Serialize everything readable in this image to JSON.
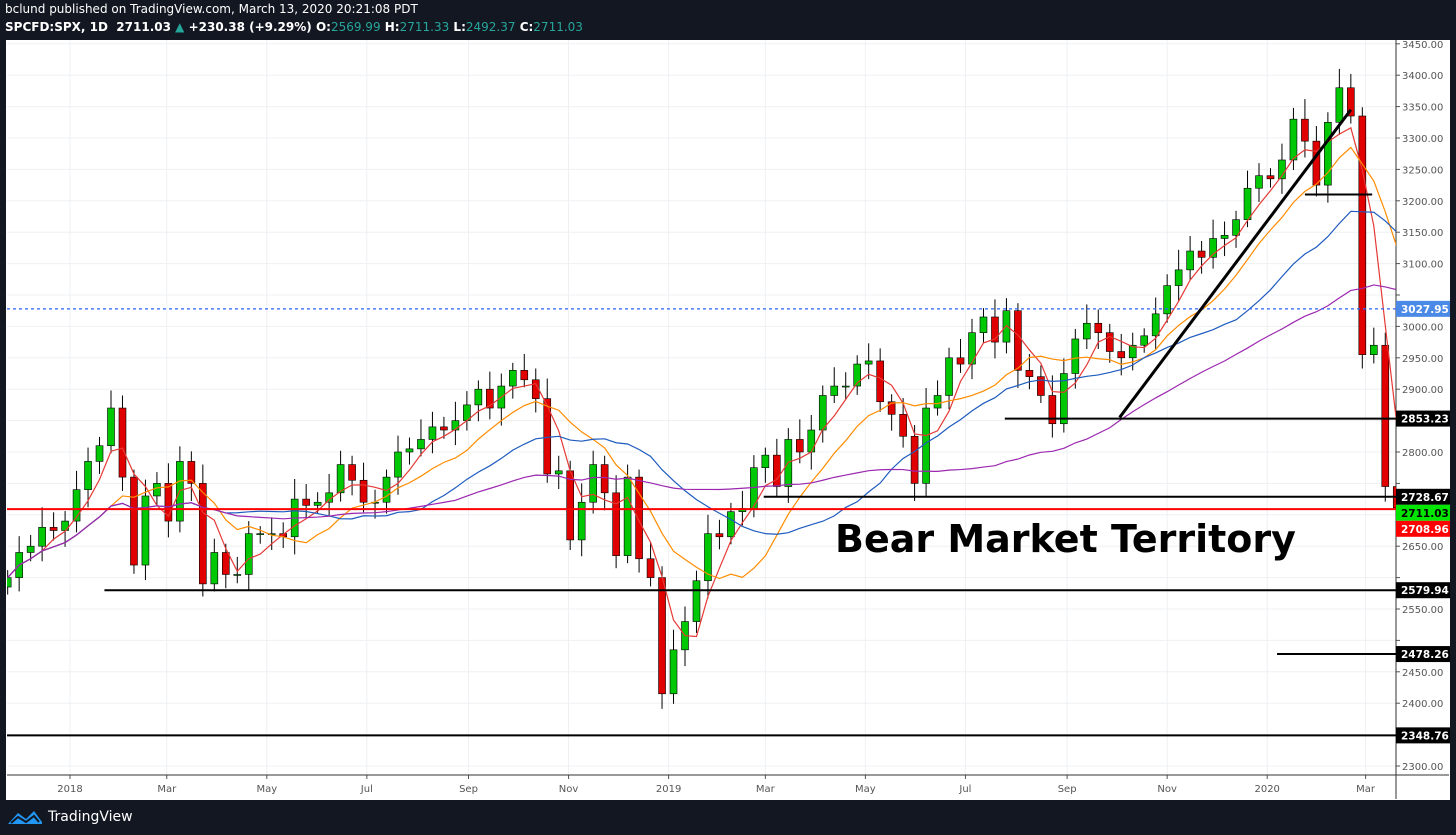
{
  "header": {
    "publisher_line": "bclund published on TradingView.com, March 13, 2020 20:21:08 PDT",
    "symbol": "SPCFD:SPX, 1D",
    "last": "2711.03",
    "change": "+230.38 (+9.29%)",
    "o_label": "O:",
    "o": "2569.99",
    "h_label": "H:",
    "h": "2711.33",
    "l_label": "L:",
    "l": "2492.37",
    "c_label": "C:",
    "c": "2711.03"
  },
  "footer": {
    "brand": "TradingView"
  },
  "chart_data": {
    "type": "candlestick",
    "title": "",
    "xlabel": "",
    "ylabel": "",
    "ylim": [
      2280,
      3460
    ],
    "y_ticks": [
      2300,
      2350,
      2400,
      2450,
      2500,
      2550,
      2600,
      2650,
      2700,
      2750,
      2800,
      2850,
      2900,
      2950,
      3000,
      3050,
      3100,
      3150,
      3200,
      3250,
      3300,
      3350,
      3400,
      3450
    ],
    "x_ticks": [
      {
        "label": "2018",
        "date": "2018-01-01"
      },
      {
        "label": "Mar",
        "date": "2018-03-01"
      },
      {
        "label": "May",
        "date": "2018-05-01"
      },
      {
        "label": "Jul",
        "date": "2018-07-01"
      },
      {
        "label": "Sep",
        "date": "2018-09-01"
      },
      {
        "label": "Nov",
        "date": "2018-11-01"
      },
      {
        "label": "2019",
        "date": "2019-01-01"
      },
      {
        "label": "Mar",
        "date": "2019-03-01"
      },
      {
        "label": "May",
        "date": "2019-05-01"
      },
      {
        "label": "Jul",
        "date": "2019-07-01"
      },
      {
        "label": "Sep",
        "date": "2019-09-01"
      },
      {
        "label": "Nov",
        "date": "2019-11-01"
      },
      {
        "label": "2020",
        "date": "2020-01-01"
      },
      {
        "label": "Mar",
        "date": "2020-03-01"
      }
    ],
    "grid": true,
    "candle_interval": "weekly approximation",
    "start_date": "2017-11-24",
    "closes": [
      2600,
      2640,
      2650,
      2680,
      2675,
      2690,
      2740,
      2785,
      2810,
      2870,
      2760,
      2620,
      2730,
      2750,
      2690,
      2785,
      2750,
      2590,
      2640,
      2605,
      2605,
      2670,
      2670,
      2670,
      2665,
      2725,
      2715,
      2720,
      2735,
      2780,
      2755,
      2720,
      2720,
      2760,
      2800,
      2805,
      2820,
      2840,
      2835,
      2850,
      2875,
      2900,
      2870,
      2905,
      2930,
      2915,
      2885,
      2765,
      2770,
      2660,
      2720,
      2780,
      2735,
      2635,
      2760,
      2630,
      2600,
      2415,
      2485,
      2530,
      2595,
      2670,
      2665,
      2705,
      2710,
      2775,
      2795,
      2745,
      2820,
      2800,
      2835,
      2890,
      2905,
      2905,
      2940,
      2945,
      2880,
      2860,
      2825,
      2750,
      2870,
      2890,
      2950,
      2940,
      2990,
      3015,
      2975,
      3025,
      2930,
      2920,
      2890,
      2845,
      2925,
      2980,
      3005,
      2990,
      2960,
      2950,
      2970,
      2985,
      3020,
      3065,
      3090,
      3120,
      3110,
      3140,
      3145,
      3170,
      3220,
      3240,
      3235,
      3265,
      3330,
      3295,
      3225,
      3325,
      3380,
      3335,
      2955,
      2970,
      2745,
      2711
    ],
    "moving_averages": [
      {
        "period_weeks": 4,
        "color": "#e53935"
      },
      {
        "period_weeks": 10,
        "color": "#ff8c00"
      },
      {
        "period_weeks": 20,
        "color": "#1e5bbf"
      },
      {
        "period_weeks": 40,
        "color": "#9c27b0"
      }
    ],
    "colors": {
      "up": "#00c805",
      "down": "#e00000"
    },
    "levels": [
      {
        "price": 3027.95,
        "label": "3027.95",
        "style": "dashed",
        "color": "#2962ff",
        "label_bg": "#4a8ae6",
        "from": "full"
      },
      {
        "price": 2853.23,
        "label": "2853.23",
        "color": "#000000",
        "label_bg": "#000000",
        "from": "2019-07-25"
      },
      {
        "price": 2728.67,
        "label": "2728.67",
        "color": "#000000",
        "label_bg": "#000000",
        "from": "2019-02-28"
      },
      {
        "price": 2711.03,
        "label": "2711.03",
        "color": null,
        "label_bg": "#00e600",
        "from": null
      },
      {
        "price": 2708.96,
        "label": "2708.96",
        "color": "#ff0000",
        "label_bg": "#ff0000",
        "from": "full"
      },
      {
        "price": 2579.94,
        "label": "2579.94",
        "color": "#000000",
        "label_bg": "#000000",
        "from": "2018-01-22"
      },
      {
        "price": 2478.26,
        "label": "2478.26",
        "color": "#000000",
        "label_bg": "#000000",
        "from": "2020-01-07"
      },
      {
        "price": 2348.76,
        "label": "2348.76",
        "color": "#000000",
        "label_bg": "#000000",
        "from": "full"
      },
      {
        "price": 3210,
        "label": null,
        "color": "#000000",
        "label_bg": null,
        "from": "2020-01-24",
        "to": "2020-03-05"
      }
    ],
    "trendline": {
      "from": {
        "date": "2019-10-03",
        "price": 2855
      },
      "to": {
        "date": "2020-02-21",
        "price": 3345
      }
    },
    "annotation": "Bear Market Territory"
  }
}
